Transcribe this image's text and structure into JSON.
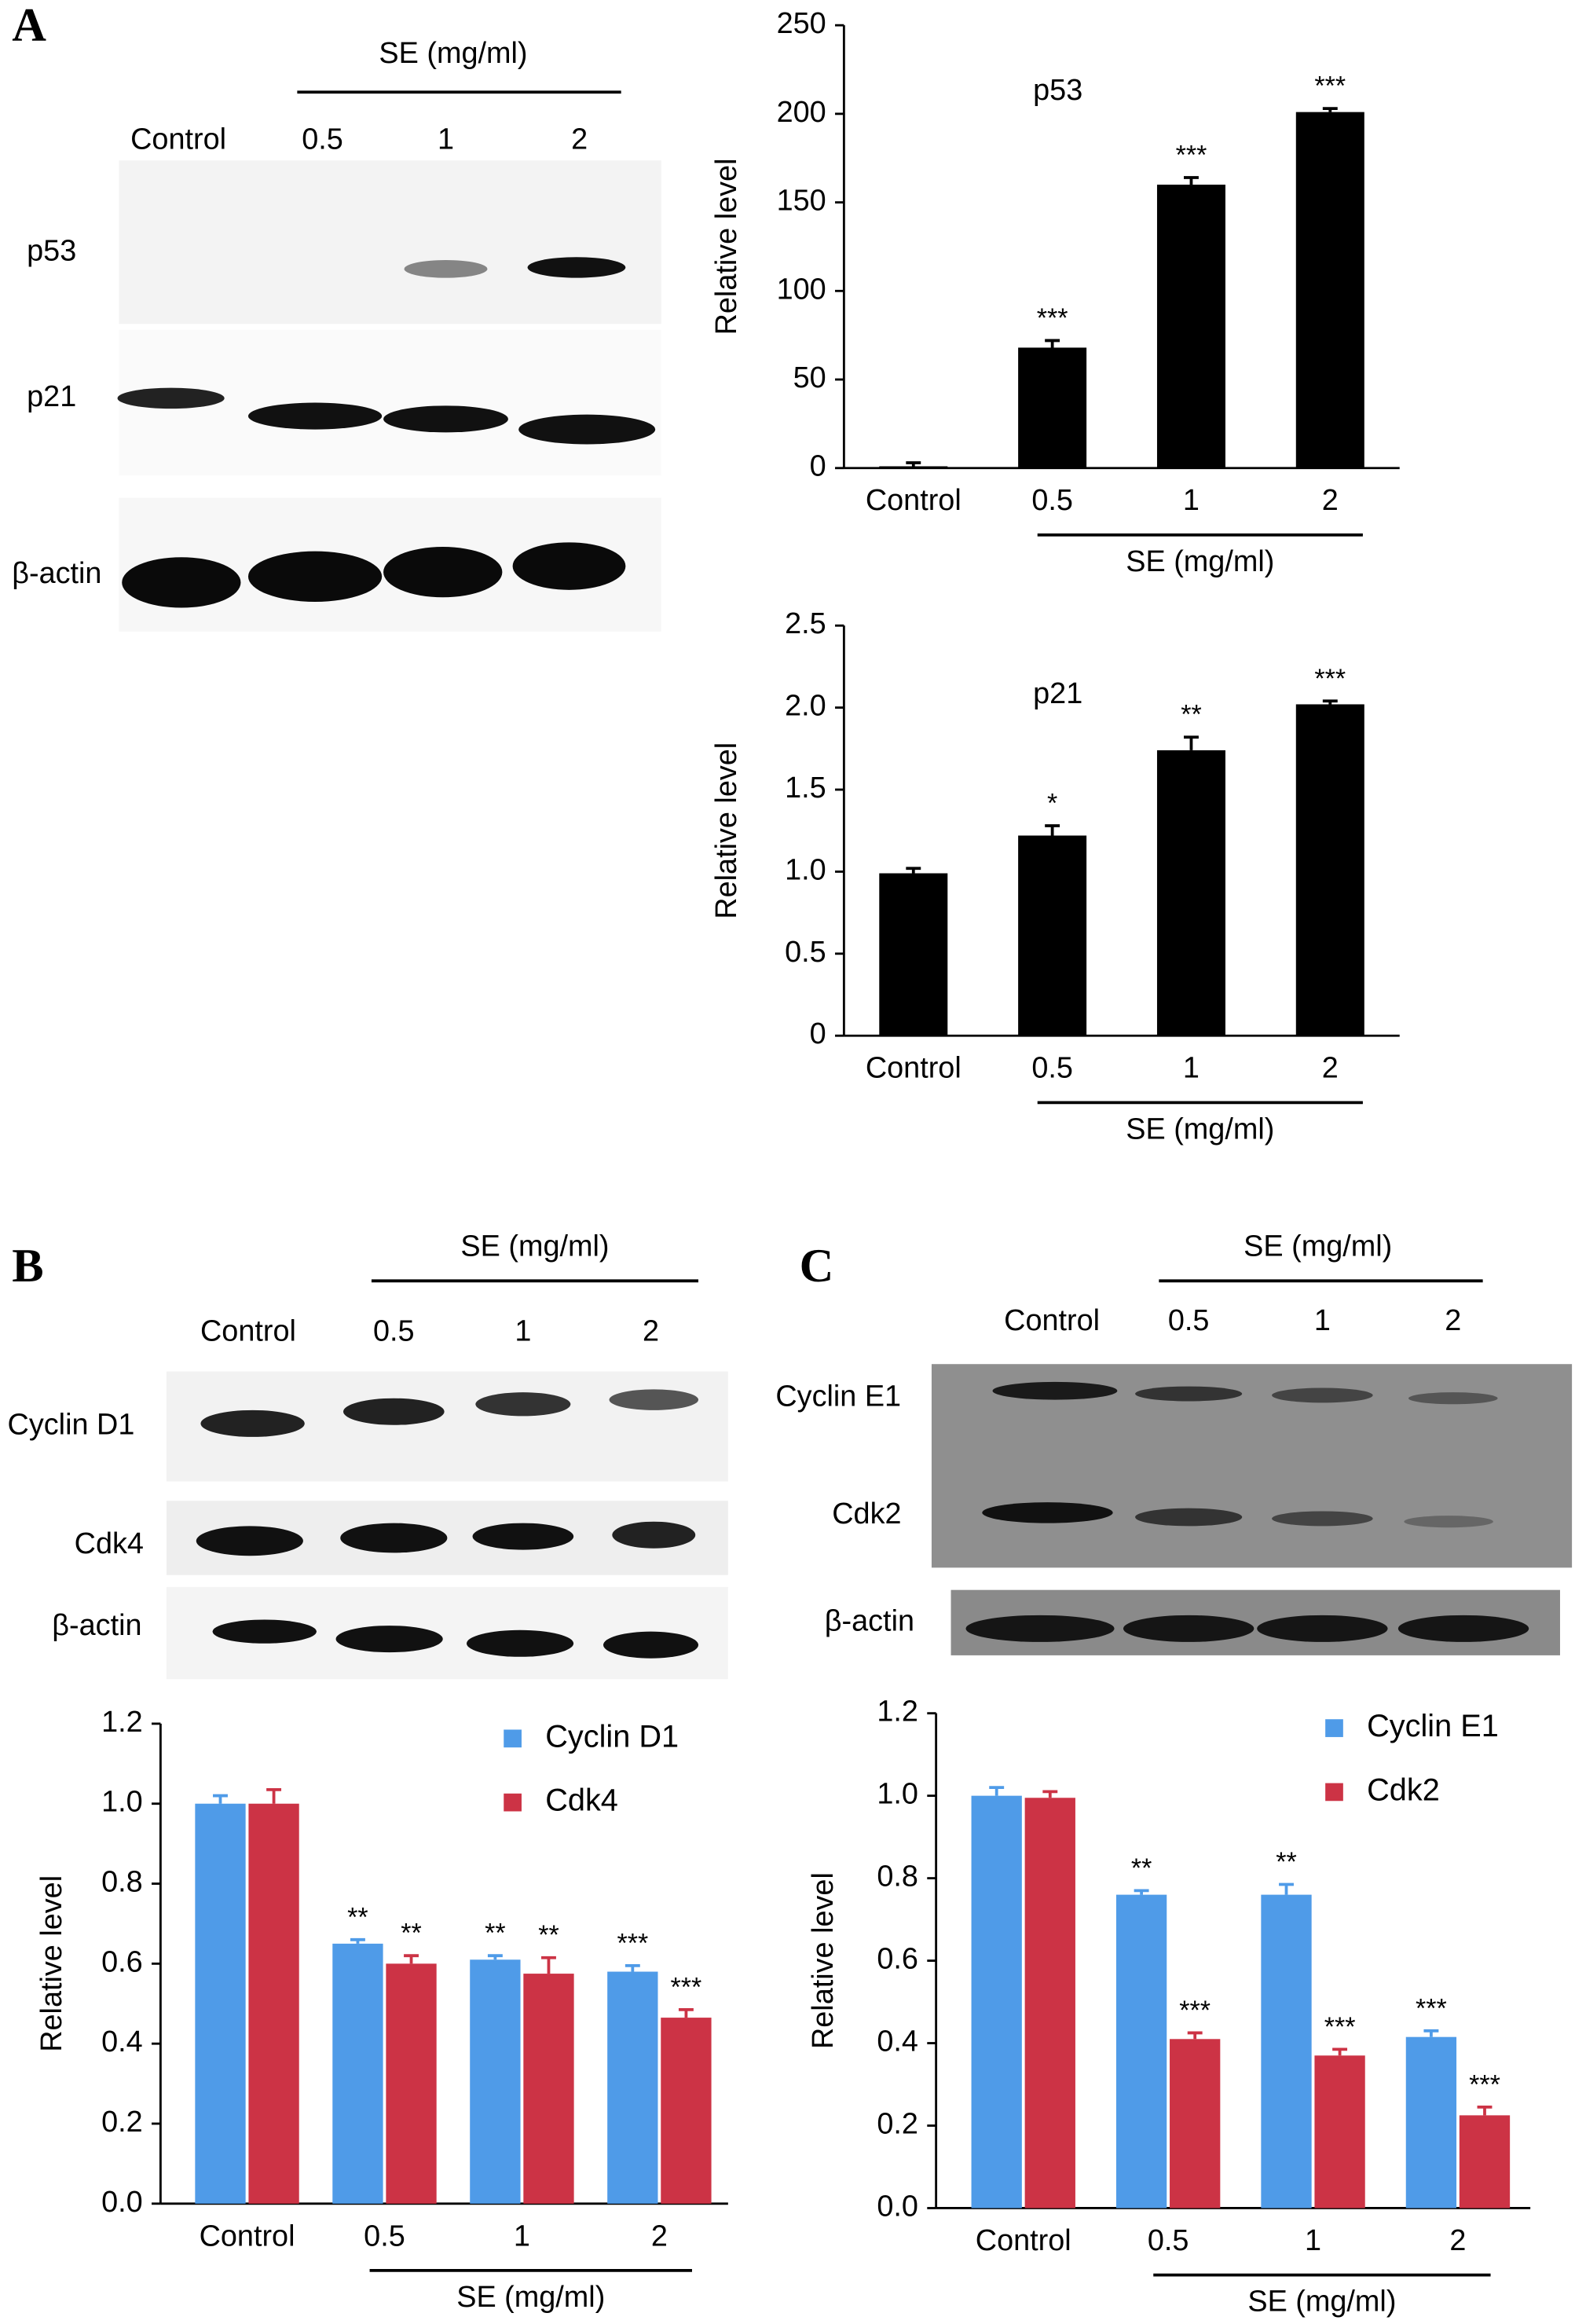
{
  "chart_data": [
    {
      "type": "bar",
      "title": "p53",
      "ylabel": "Relative level",
      "group_label": "SE (mg/ml)",
      "categories": [
        "Control",
        "0.5",
        "1",
        "2"
      ],
      "values": [
        1,
        68,
        160,
        201
      ],
      "errors": [
        2,
        4,
        4,
        2
      ],
      "significance": [
        null,
        "***",
        "***",
        "***"
      ],
      "color": "#000000",
      "ylim": [
        0,
        250
      ],
      "yticks": [
        0,
        50,
        100,
        150,
        200,
        250
      ]
    },
    {
      "type": "bar",
      "title": "p21",
      "ylabel": "Relative level",
      "group_label": "SE (mg/ml)",
      "categories": [
        "Control",
        "0.5",
        "1",
        "2"
      ],
      "values": [
        0.99,
        1.22,
        1.74,
        2.02
      ],
      "errors": [
        0.03,
        0.06,
        0.08,
        0.02
      ],
      "significance": [
        null,
        "*",
        "**",
        "***"
      ],
      "color": "#000000",
      "ylim": [
        0,
        2.5
      ],
      "yticks": [
        0,
        0.5,
        {
          "value": 1,
          "label": "1.0"
        },
        1.5,
        {
          "value": 2,
          "label": "2.0"
        },
        2.5
      ]
    },
    {
      "type": "grouped_bar",
      "ylabel": "Relative level",
      "group_label": "SE (mg/ml)",
      "legend": "upper right",
      "categories": [
        "Control",
        "0.5",
        "1",
        "2"
      ],
      "series": [
        {
          "name": "Cyclin D1",
          "color": "#4f9be8",
          "values": [
            1.0,
            0.65,
            0.61,
            0.58
          ],
          "errors": [
            0.02,
            0.01,
            0.01,
            0.015
          ],
          "significance": [
            null,
            "**",
            "**",
            "***"
          ]
        },
        {
          "name": "Cdk4",
          "color": "#cc3345",
          "values": [
            1.0,
            0.6,
            0.575,
            0.465
          ],
          "errors": [
            0.035,
            0.02,
            0.04,
            0.02
          ],
          "significance": [
            null,
            "**",
            "**",
            "***"
          ]
        }
      ],
      "ylim": [
        0,
        1.2
      ],
      "yticks": [
        {
          "value": 0,
          "label": "0.0"
        },
        0.2,
        0.4,
        0.6,
        0.8,
        {
          "value": 1,
          "label": "1.0"
        },
        1.2
      ]
    },
    {
      "type": "grouped_bar",
      "ylabel": "Relative level",
      "group_label": "SE (mg/ml)",
      "legend": "upper right",
      "categories": [
        "Control",
        "0.5",
        "1",
        "2"
      ],
      "series": [
        {
          "name": "Cyclin E1",
          "color": "#4f9be8",
          "values": [
            1.0,
            0.76,
            0.76,
            0.415
          ],
          "errors": [
            0.02,
            0.01,
            0.025,
            0.015
          ],
          "significance": [
            null,
            "**",
            "**",
            "***"
          ]
        },
        {
          "name": "Cdk2",
          "color": "#cc3345",
          "values": [
            0.995,
            0.41,
            0.37,
            0.225
          ],
          "errors": [
            0.015,
            0.015,
            0.015,
            0.02
          ],
          "significance": [
            null,
            "***",
            "***",
            "***"
          ]
        }
      ],
      "ylim": [
        0,
        1.2
      ],
      "yticks": [
        {
          "value": 0,
          "label": "0.0"
        },
        0.2,
        0.4,
        0.6,
        0.8,
        {
          "value": 1,
          "label": "1.0"
        },
        1.2
      ]
    }
  ],
  "blots": [
    {
      "panel": "A",
      "group_label": "SE (mg/ml)",
      "lanes": [
        "Control",
        "0.5",
        "1",
        "2"
      ],
      "rows": [
        "p53",
        "p21",
        "β-actin"
      ]
    },
    {
      "panel": "B",
      "group_label": "SE (mg/ml)",
      "lanes": [
        "Control",
        "0.5",
        "1",
        "2"
      ],
      "rows": [
        "Cyclin D1",
        "Cdk4",
        "β-actin"
      ]
    },
    {
      "panel": "C",
      "group_label": "SE (mg/ml)",
      "lanes": [
        "Control",
        "0.5",
        "1",
        "2"
      ],
      "rows": [
        "Cyclin E1",
        "Cdk2",
        "β-actin"
      ]
    }
  ]
}
